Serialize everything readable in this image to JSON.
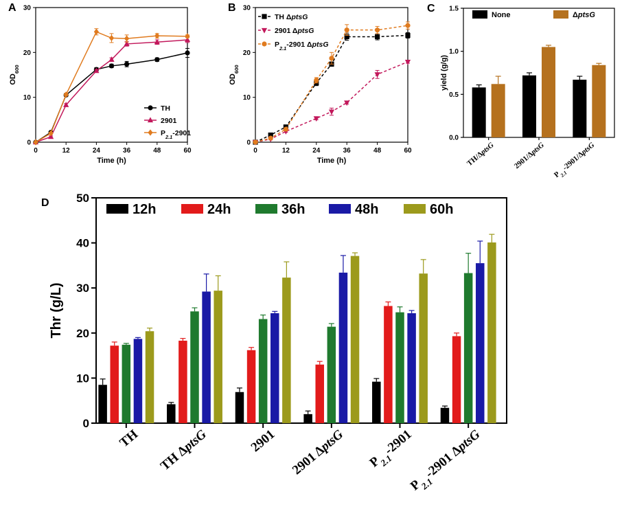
{
  "chart_data": [
    {
      "id": "A",
      "panel_label": "A",
      "type": "line",
      "xlabel": "Time (h)",
      "ylabel": "OD",
      "ylabel_sub": "600",
      "xlim": [
        0,
        60
      ],
      "ylim": [
        0,
        30
      ],
      "xticks": [
        0,
        12,
        24,
        36,
        48,
        60
      ],
      "yticks": [
        0,
        10,
        20,
        30
      ],
      "legend_position": "bottom-right",
      "series": [
        {
          "name": "TH",
          "color": "#000000",
          "marker": "circle",
          "dashed": false,
          "x": [
            0,
            6,
            12,
            24,
            30,
            36,
            48,
            60
          ],
          "y": [
            0,
            2.2,
            10.5,
            16.2,
            17.0,
            17.4,
            18.4,
            19.9
          ],
          "err": [
            0,
            0.2,
            0.3,
            0.4,
            0.4,
            0.6,
            0.4,
            1.0
          ]
        },
        {
          "name": "2901",
          "color": "#c2185b",
          "marker": "triangle",
          "dashed": false,
          "x": [
            0,
            6,
            12,
            24,
            30,
            36,
            48,
            60
          ],
          "y": [
            0,
            1.2,
            8.3,
            15.9,
            18.4,
            21.9,
            22.3,
            22.8
          ],
          "err": [
            0,
            0.2,
            0.3,
            0.3,
            0.4,
            0.5,
            0.5,
            0.6
          ]
        },
        {
          "name": "P",
          "sub": "2.1",
          "suffix": "-2901",
          "color": "#e07b1f",
          "marker": "diamond",
          "dashed": false,
          "x": [
            0,
            6,
            12,
            24,
            30,
            36,
            48,
            60
          ],
          "y": [
            0,
            2.0,
            10.6,
            24.6,
            23.2,
            23.1,
            23.7,
            23.6
          ],
          "err": [
            0,
            0.2,
            0.3,
            0.7,
            1.0,
            0.8,
            0.5,
            0.3
          ]
        }
      ]
    },
    {
      "id": "B",
      "panel_label": "B",
      "type": "line",
      "xlabel": "Time (h)",
      "ylabel": "OD",
      "ylabel_sub": "600",
      "xlim": [
        0,
        60
      ],
      "ylim": [
        0,
        30
      ],
      "xticks": [
        0,
        12,
        24,
        36,
        48,
        60
      ],
      "yticks": [
        0,
        10,
        20,
        30
      ],
      "legend_position": "top-left",
      "series": [
        {
          "name": "TH ",
          "delta": "Δ",
          "gene": "ptsG",
          "color": "#000000",
          "marker": "square",
          "dashed": true,
          "x": [
            0,
            6,
            12,
            24,
            30,
            36,
            48,
            60
          ],
          "y": [
            0,
            1.6,
            3.4,
            13.2,
            17.4,
            23.5,
            23.5,
            23.8
          ],
          "err": [
            0,
            0.2,
            0.3,
            0.6,
            0.5,
            0.8,
            0.7,
            0.6
          ]
        },
        {
          "name": "2901 ",
          "delta": "Δ",
          "gene": "ptsG",
          "color": "#c2185b",
          "marker": "triangle-down",
          "dashed": true,
          "x": [
            0,
            6,
            12,
            24,
            30,
            36,
            48,
            60
          ],
          "y": [
            0,
            0.7,
            2.4,
            5.3,
            6.8,
            8.8,
            15.1,
            17.9
          ],
          "err": [
            0,
            0.2,
            0.2,
            0.3,
            0.8,
            0.3,
            0.9,
            0.3
          ]
        },
        {
          "name": "P",
          "sub": "2.1",
          "suffix": "-2901 ",
          "delta": "Δ",
          "gene": "ptsG",
          "color": "#e07b1f",
          "marker": "circle",
          "dashed": true,
          "x": [
            0,
            6,
            12,
            24,
            30,
            36,
            48,
            60
          ],
          "y": [
            0,
            0.9,
            2.9,
            13.8,
            18.7,
            25.0,
            25.0,
            26.0
          ],
          "err": [
            0,
            0.2,
            0.3,
            0.6,
            1.3,
            1.2,
            0.8,
            0.8
          ]
        }
      ]
    },
    {
      "id": "C",
      "panel_label": "C",
      "type": "bar",
      "ylabel": "yield (g/g)",
      "ylim": [
        0,
        1.5
      ],
      "yticks": [
        "0.0",
        "0.5",
        "1.0",
        "1.5"
      ],
      "categories": [
        {
          "prefix": "TH/",
          "sub": "",
          "gene": "ptsG"
        },
        {
          "prefix": "2901/",
          "sub": "",
          "gene": "ptsG"
        },
        {
          "prefix": "P",
          "sub": "2.1",
          "mid": "-2901/",
          "gene": "ptsG"
        }
      ],
      "legend_position": "top",
      "series": [
        {
          "name": "None",
          "color": "#000000",
          "values": [
            0.58,
            0.72,
            0.67
          ],
          "err": [
            0.03,
            0.03,
            0.04
          ]
        },
        {
          "name": "ptsG",
          "delta": "Δ",
          "color": "#b5711e",
          "values": [
            0.62,
            1.05,
            0.84
          ],
          "err": [
            0.09,
            0.02,
            0.02
          ]
        }
      ]
    },
    {
      "id": "D",
      "panel_label": "D",
      "type": "bar",
      "ylabel": "Thr (g/L)",
      "ylim": [
        0,
        50
      ],
      "yticks": [
        0,
        10,
        20,
        30,
        40,
        50
      ],
      "categories": [
        "TH",
        "TH ΔptsG",
        "2901",
        "2901 ΔptsG",
        "P2.1-2901",
        "P2.1-2901 ΔptsG"
      ],
      "category_labels": [
        {
          "prefix": "TH",
          "sub": "",
          "mid": "",
          "gene": ""
        },
        {
          "prefix": "TH Δ",
          "sub": "",
          "mid": "",
          "gene": "ptsG"
        },
        {
          "prefix": "2901",
          "sub": "",
          "mid": "",
          "gene": ""
        },
        {
          "prefix": "2901 Δ",
          "sub": "",
          "mid": "",
          "gene": "ptsG"
        },
        {
          "prefix": "P",
          "sub": "2.1",
          "mid": "-2901",
          "gene": ""
        },
        {
          "prefix": "P",
          "sub": "2.1",
          "mid": "-2901 Δ",
          "gene": "ptsG"
        }
      ],
      "legend_position": "top",
      "series": [
        {
          "name": "12h",
          "color": "#000000",
          "values": [
            8.5,
            4.2,
            6.9,
            2.0,
            9.2,
            3.4
          ],
          "err": [
            1.3,
            0.4,
            0.9,
            0.7,
            0.7,
            0.4
          ]
        },
        {
          "name": "24h",
          "color": "#e21b1b",
          "values": [
            17.2,
            18.3,
            16.2,
            13.0,
            26.0,
            19.3
          ],
          "err": [
            0.8,
            0.5,
            0.6,
            0.7,
            0.9,
            0.7
          ]
        },
        {
          "name": "36h",
          "color": "#1f7a2e",
          "values": [
            17.4,
            24.8,
            23.1,
            21.4,
            24.6,
            33.3
          ],
          "err": [
            0.3,
            0.8,
            0.9,
            0.7,
            1.2,
            4.4
          ]
        },
        {
          "name": "48h",
          "color": "#1a1aa6",
          "values": [
            18.7,
            29.2,
            24.4,
            33.4,
            24.4,
            35.5
          ],
          "err": [
            0.3,
            3.9,
            0.4,
            3.8,
            0.6,
            4.9
          ]
        },
        {
          "name": "60h",
          "color": "#9c9a1c",
          "values": [
            20.4,
            29.4,
            32.3,
            37.1,
            33.2,
            40.1
          ],
          "err": [
            0.7,
            3.3,
            3.5,
            0.7,
            3.1,
            1.8
          ]
        }
      ]
    }
  ]
}
